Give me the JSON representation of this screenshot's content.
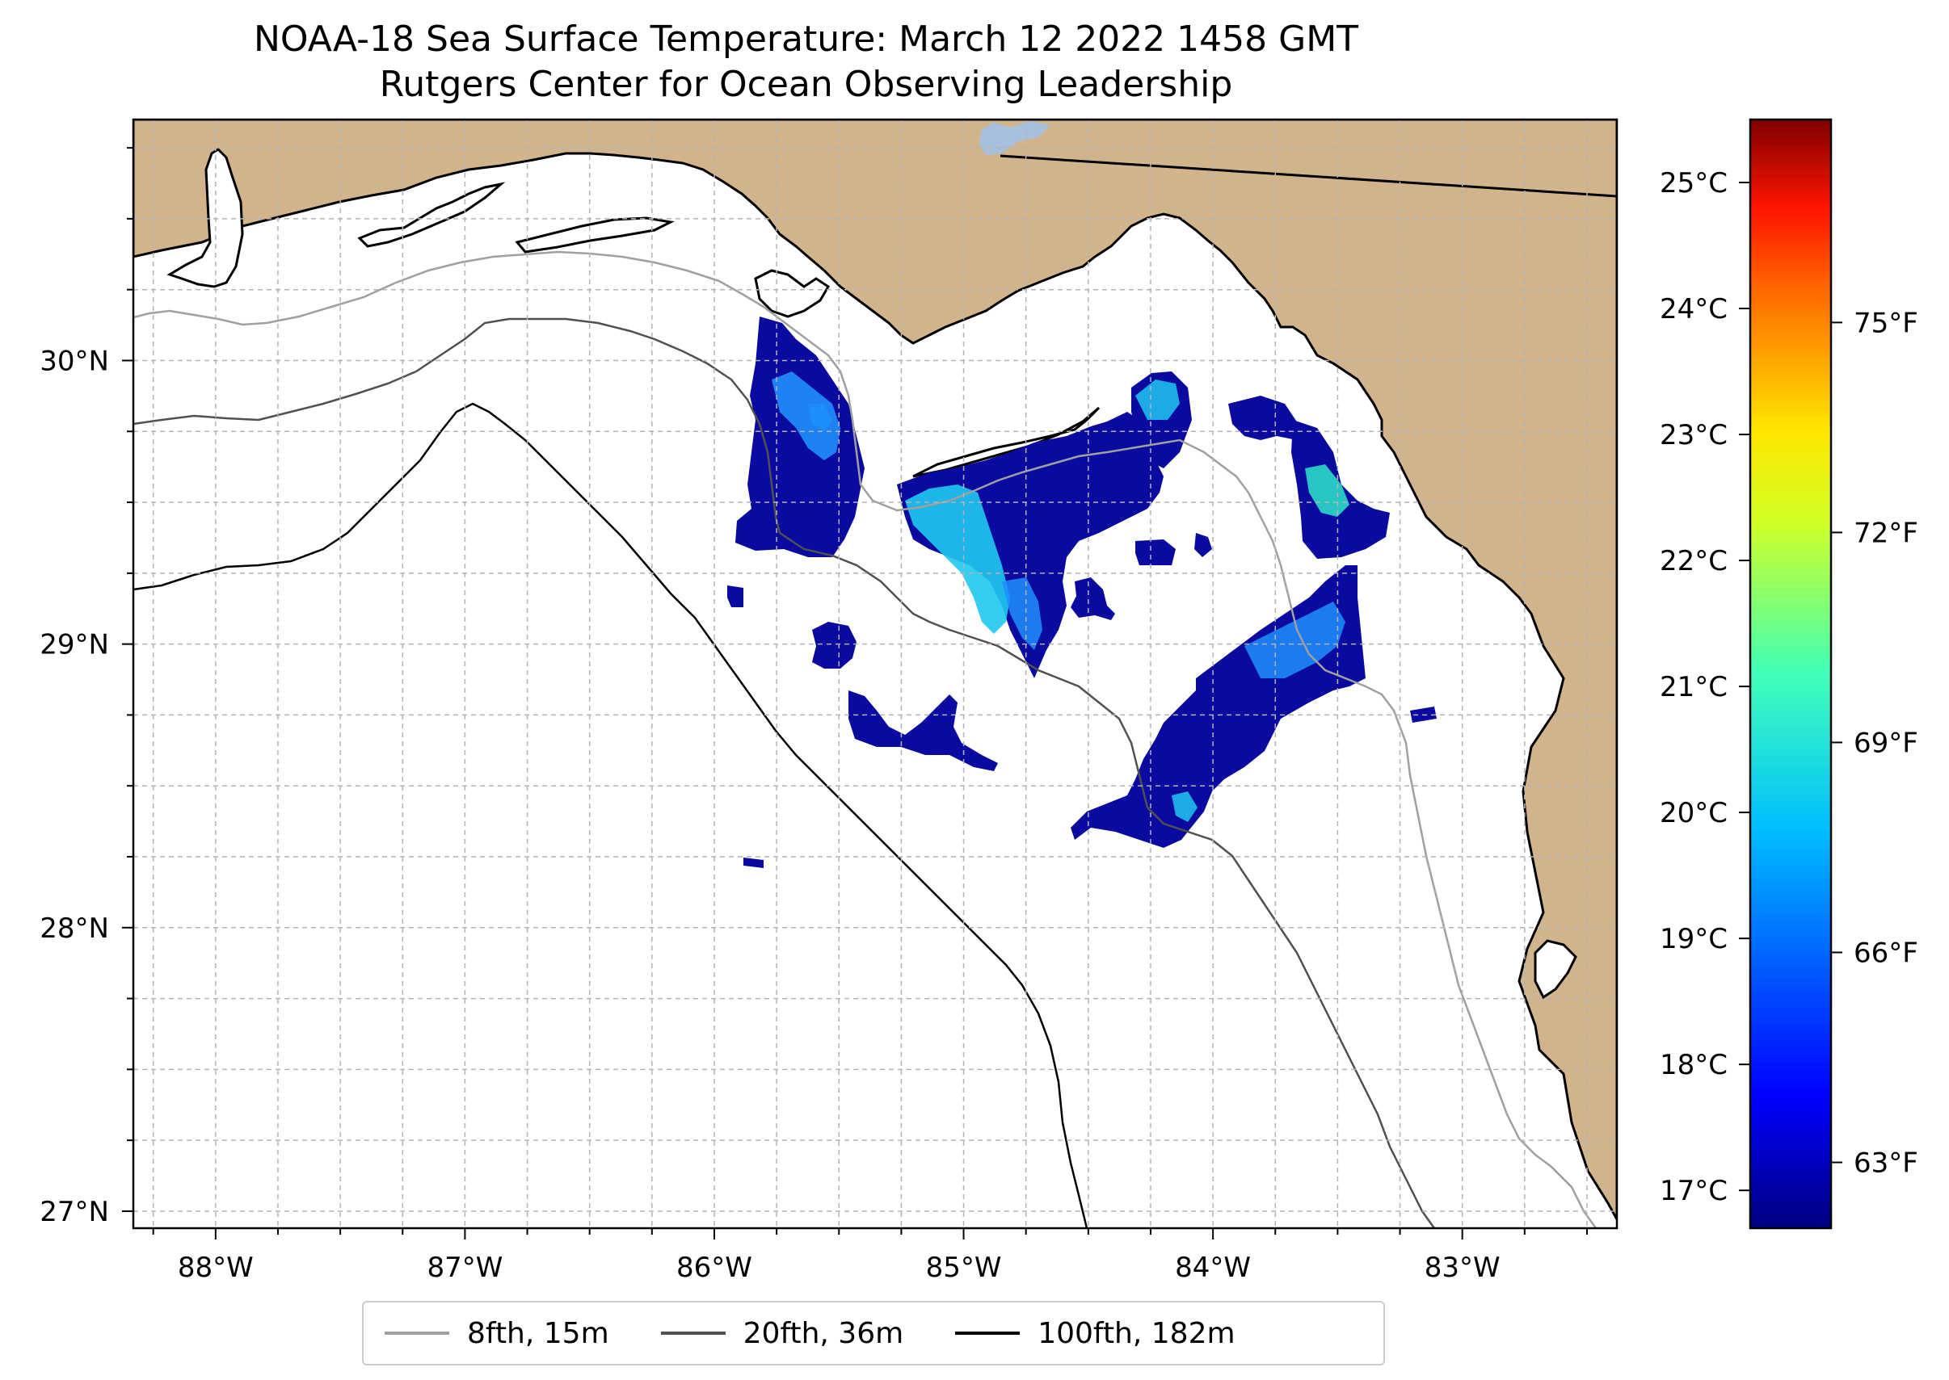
{
  "title": "NOAA-18 Sea Surface Temperature: March 12 2022 1458 GMT",
  "subtitle": "Rutgers Center for Ocean Observing Leadership",
  "map": {
    "lon_range": [
      -88.33,
      -82.38
    ],
    "lat_range": [
      26.94,
      30.85
    ],
    "lon_ticks": [
      {
        "value": -88,
        "label": "88°W"
      },
      {
        "value": -87,
        "label": "87°W"
      },
      {
        "value": -86,
        "label": "86°W"
      },
      {
        "value": -85,
        "label": "85°W"
      },
      {
        "value": -84,
        "label": "84°W"
      },
      {
        "value": -83,
        "label": "83°W"
      }
    ],
    "lat_ticks": [
      {
        "value": 30,
        "label": "30°N"
      },
      {
        "value": 29,
        "label": "29°N"
      },
      {
        "value": 28,
        "label": "28°N"
      },
      {
        "value": 27,
        "label": "27°N"
      }
    ],
    "land_color": "#d2b48c",
    "ocean_color": "#ffffff"
  },
  "colorbar": {
    "celsius_ticks": [
      "25°C",
      "24°C",
      "23°C",
      "22°C",
      "21°C",
      "20°C",
      "19°C",
      "18°C",
      "17°C"
    ],
    "celsius_values": [
      25,
      24,
      23,
      22,
      21,
      20,
      19,
      18,
      17
    ],
    "fahrenheit_ticks": [
      "75°F",
      "72°F",
      "69°F",
      "66°F",
      "63°F"
    ],
    "fahrenheit_values": [
      75,
      72,
      69,
      66,
      63
    ],
    "range_c": [
      16.7,
      25.5
    ],
    "colors": [
      "#00007f",
      "#0000ff",
      "#007fff",
      "#00ffff",
      "#7fff7f",
      "#ffff00",
      "#ff7f00",
      "#ff0000",
      "#7f0000"
    ]
  },
  "legend": {
    "items": [
      {
        "label": "8fth, 15m",
        "color": "#a0a0a0"
      },
      {
        "label": "20fth, 36m",
        "color": "#505050"
      },
      {
        "label": "100fth, 182m",
        "color": "#000000"
      }
    ]
  }
}
